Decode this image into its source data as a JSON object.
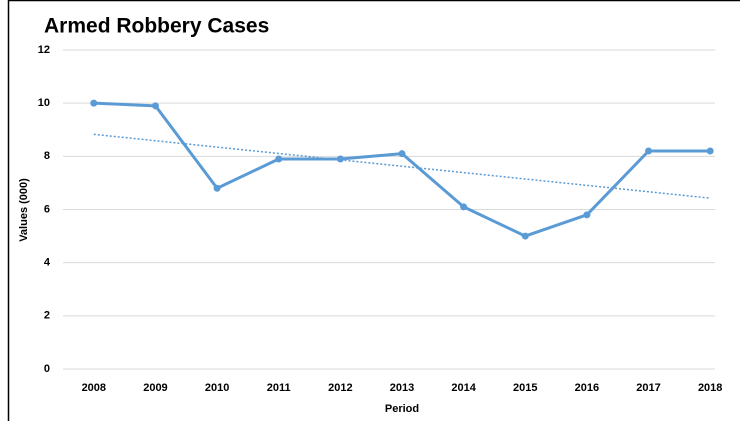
{
  "chart_data": {
    "type": "line",
    "title": "Armed Robbery Cases",
    "x_label": "Period",
    "y_label": "Values (000)",
    "categories": [
      "2008",
      "2009",
      "2010",
      "2011",
      "2012",
      "2013",
      "2014",
      "2015",
      "2016",
      "2017",
      "2018"
    ],
    "series": [
      {
        "name": "Armed Robbery Cases",
        "color": "#5b9bd5",
        "values": [
          10,
          9.9,
          6.8,
          7.9,
          7.9,
          8.1,
          6.1,
          5.0,
          5.8,
          8.2,
          8.2
        ]
      }
    ],
    "trendline": "linear",
    "ylim": [
      0,
      12
    ],
    "yticks": [
      0,
      2,
      4,
      6,
      8,
      10,
      12
    ],
    "grid": true
  }
}
